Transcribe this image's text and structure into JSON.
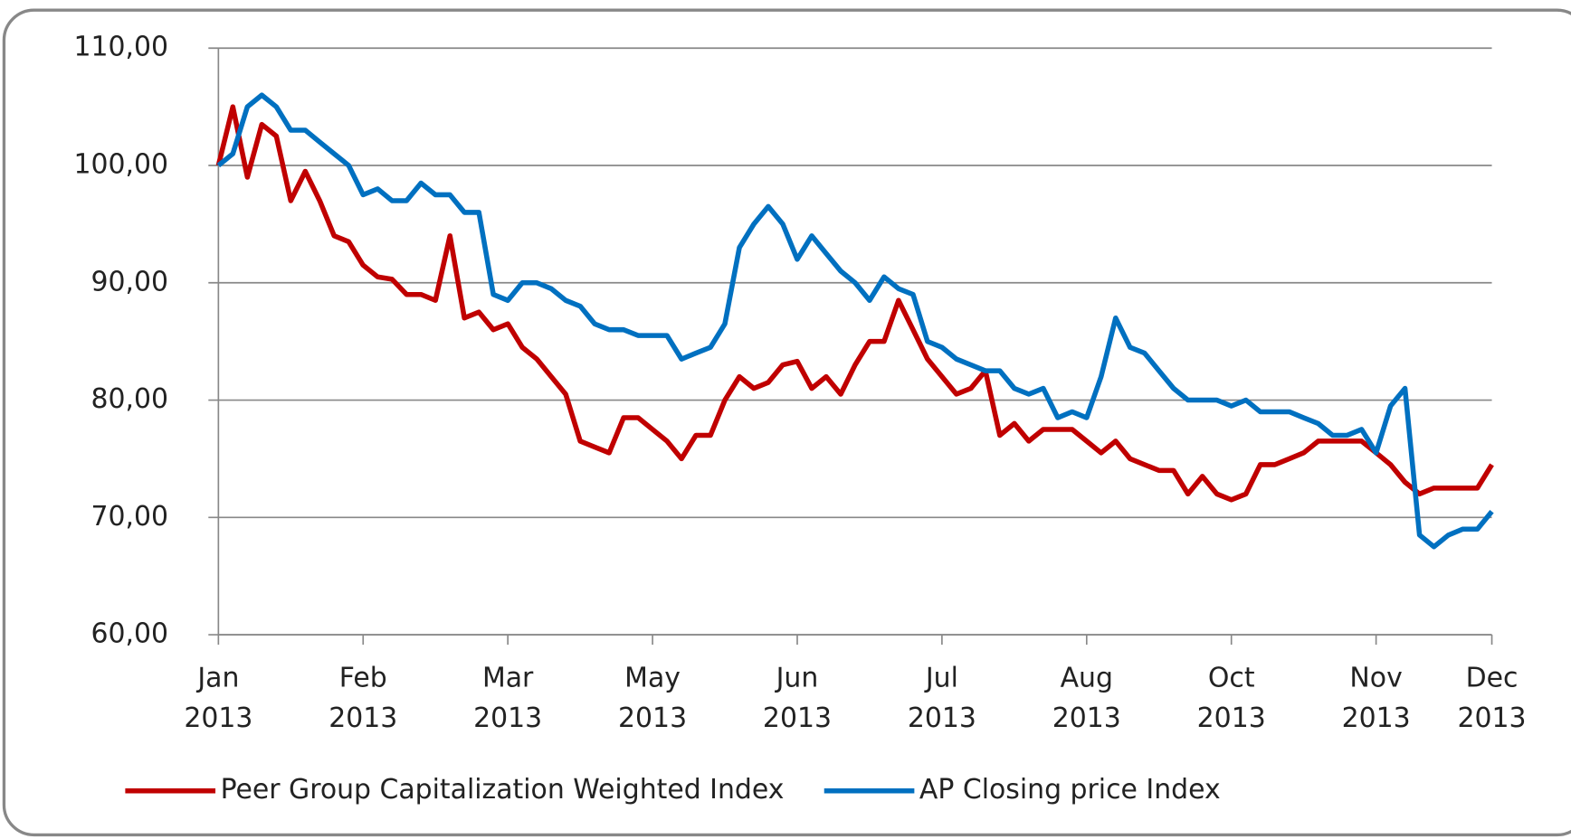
{
  "chart_data": {
    "type": "line",
    "categories": [
      "Jan\n2013",
      null,
      null,
      null,
      null,
      null,
      null,
      null,
      null,
      null,
      "Feb\n2013",
      null,
      null,
      null,
      null,
      null,
      null,
      null,
      null,
      null,
      "Mar\n2013",
      null,
      null,
      null,
      null,
      null,
      null,
      null,
      null,
      null,
      "May\n2013",
      null,
      null,
      null,
      null,
      null,
      null,
      null,
      null,
      null,
      "Jun\n2013",
      null,
      null,
      null,
      null,
      null,
      null,
      null,
      null,
      null,
      "Jul\n2013",
      null,
      null,
      null,
      null,
      null,
      null,
      null,
      null,
      null,
      "Aug\n2013",
      null,
      null,
      null,
      null,
      null,
      null,
      null,
      null,
      null,
      "Oct\n2013",
      null,
      null,
      null,
      null,
      null,
      null,
      null,
      null,
      null,
      "Nov\n2013",
      null,
      null,
      null,
      null,
      null,
      null,
      null,
      "Dec\n2013"
    ],
    "series": [
      {
        "name": "Peer Group Capitalization Weighted Index",
        "color": "#c00000",
        "values": [
          100,
          105,
          99,
          103.5,
          102.5,
          97,
          99.5,
          97,
          94,
          93.5,
          91.5,
          90.5,
          90.3,
          89,
          89,
          88.5,
          94,
          87,
          87.5,
          86,
          86.5,
          84.5,
          83.5,
          82,
          80.5,
          76.5,
          76,
          75.5,
          78.5,
          78.5,
          77.5,
          76.5,
          75,
          77,
          77,
          80,
          82,
          81,
          81.5,
          83,
          83.3,
          81,
          82,
          80.5,
          83,
          85,
          85,
          88.5,
          86,
          83.5,
          82,
          80.5,
          81,
          82.5,
          77,
          78,
          76.5,
          77.5,
          77.5,
          77.5,
          76.5,
          75.5,
          76.5,
          75,
          74.5,
          74,
          74,
          72,
          73.5,
          72,
          71.5,
          72,
          74.5,
          74.5,
          75,
          75.5,
          76.5,
          76.5,
          76.5,
          76.5,
          75.5,
          74.5,
          73,
          72,
          72.5,
          72.5,
          72.5,
          72.5,
          74.5
        ]
      },
      {
        "name": "AP Closing price Index",
        "color": "#0070c0",
        "values": [
          100,
          101,
          105,
          106,
          105,
          103,
          103,
          102,
          101,
          100,
          97.5,
          98,
          97,
          97,
          98.5,
          97.5,
          97.5,
          96,
          96,
          89,
          88.5,
          90,
          90,
          89.5,
          88.5,
          88,
          86.5,
          86,
          86,
          85.5,
          85.5,
          85.5,
          83.5,
          84,
          84.5,
          86.5,
          93,
          95,
          96.5,
          95,
          92,
          94,
          92.5,
          91,
          90,
          88.5,
          90.5,
          89.5,
          89,
          85,
          84.5,
          83.5,
          83,
          82.5,
          82.5,
          81,
          80.5,
          81,
          78.5,
          79,
          78.5,
          82,
          87,
          84.5,
          84,
          82.5,
          81,
          80,
          80,
          80,
          79.5,
          80,
          79,
          79,
          79,
          78.5,
          78,
          77,
          77,
          77.5,
          75.5,
          79.5,
          81,
          68.5,
          67.5,
          68.5,
          69,
          69,
          70.5
        ]
      }
    ],
    "ylim": [
      60,
      110
    ],
    "yticks": [
      {
        "value": 60,
        "label": "60,00"
      },
      {
        "value": 70,
        "label": "70,00"
      },
      {
        "value": 80,
        "label": "80,00"
      },
      {
        "value": 90,
        "label": "90,00"
      },
      {
        "value": 100,
        "label": "100,00"
      },
      {
        "value": 110,
        "label": "110,00"
      }
    ],
    "grid": true,
    "legend": "bottom"
  }
}
